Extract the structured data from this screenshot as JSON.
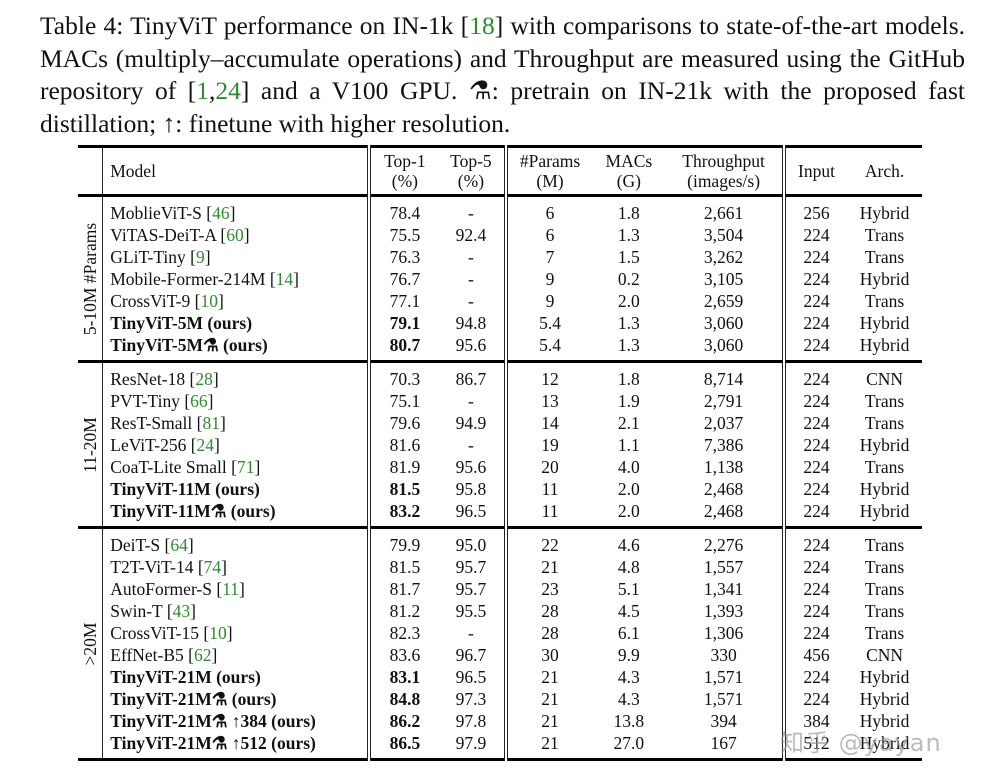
{
  "caption": {
    "prefix": "Table 4: TinyViT performance on IN-1k [",
    "cite1": "18",
    "part2": "] with comparisons to state-of-the-art models. MACs (multiply–accumulate operations) and Throughput are measured using the GitHub repository of [",
    "cite2": "1",
    "comma": ",",
    "cite3": "24",
    "part3": "] and a V100 GPU. ",
    "flask_symbol": "⚗",
    "part4": ": pretrain on IN-21k with the proposed fast distillation; ↑: finetune with higher resolution."
  },
  "table": {
    "headers": {
      "model": "Model",
      "top1": [
        "Top-1",
        "(%)"
      ],
      "top5": [
        "Top-5",
        "(%)"
      ],
      "params": [
        "#Params",
        "(M)"
      ],
      "macs": [
        "MACs",
        "(G)"
      ],
      "throughput": [
        "Throughput",
        "(images/s)"
      ],
      "input": "Input",
      "arch": "Arch."
    },
    "groups": [
      {
        "label": "5-10M #Params",
        "rows": [
          {
            "name": "MoblieViT-S ",
            "cite": "46",
            "top1": "78.4",
            "top5": "-",
            "params": "6",
            "macs": "1.8",
            "throughput": "2,661",
            "input": "256",
            "arch": "Hybrid"
          },
          {
            "name": "ViTAS-DeiT-A ",
            "cite": "60",
            "top1": "75.5",
            "top5": "92.4",
            "params": "6",
            "macs": "1.3",
            "throughput": "3,504",
            "input": "224",
            "arch": "Trans"
          },
          {
            "name": "GLiT-Tiny ",
            "cite": "9",
            "top1": "76.3",
            "top5": "-",
            "params": "7",
            "macs": "1.5",
            "throughput": "3,262",
            "input": "224",
            "arch": "Trans"
          },
          {
            "name": "Mobile-Former-214M ",
            "cite": "14",
            "top1": "76.7",
            "top5": "-",
            "params": "9",
            "macs": "0.2",
            "throughput": "3,105",
            "input": "224",
            "arch": "Hybrid"
          },
          {
            "name": "CrossViT-9 ",
            "cite": "10",
            "top1": "77.1",
            "top5": "-",
            "params": "9",
            "macs": "2.0",
            "throughput": "2,659",
            "input": "224",
            "arch": "Trans"
          },
          {
            "name": "TinyViT-5M (ours)",
            "bold": true,
            "top1": "79.1",
            "top5": "94.8",
            "params": "5.4",
            "macs": "1.3",
            "throughput": "3,060",
            "input": "224",
            "arch": "Hybrid"
          },
          {
            "name": "TinyViT-5M⚗ (ours)",
            "bold": true,
            "top1": "80.7",
            "top5": "95.6",
            "params": "5.4",
            "macs": "1.3",
            "throughput": "3,060",
            "input": "224",
            "arch": "Hybrid"
          }
        ]
      },
      {
        "label": "11-20M",
        "rows": [
          {
            "name": "ResNet-18 ",
            "cite": "28",
            "top1": "70.3",
            "top5": "86.7",
            "params": "12",
            "macs": "1.8",
            "throughput": "8,714",
            "input": "224",
            "arch": "CNN"
          },
          {
            "name": "PVT-Tiny ",
            "cite": "66",
            "top1": "75.1",
            "top5": "-",
            "params": "13",
            "macs": "1.9",
            "throughput": "2,791",
            "input": "224",
            "arch": "Trans"
          },
          {
            "name": "ResT-Small ",
            "cite": "81",
            "top1": "79.6",
            "top5": "94.9",
            "params": "14",
            "macs": "2.1",
            "throughput": "2,037",
            "input": "224",
            "arch": "Trans"
          },
          {
            "name": "LeViT-256 ",
            "cite": "24",
            "top1": "81.6",
            "top5": "-",
            "params": "19",
            "macs": "1.1",
            "throughput": "7,386",
            "input": "224",
            "arch": "Hybrid"
          },
          {
            "name": "CoaT-Lite Small ",
            "cite": "71",
            "top1": "81.9",
            "top5": "95.6",
            "params": "20",
            "macs": "4.0",
            "throughput": "1,138",
            "input": "224",
            "arch": "Trans"
          },
          {
            "name": "TinyViT-11M (ours)",
            "bold": true,
            "top1": "81.5",
            "top5": "95.8",
            "params": "11",
            "macs": "2.0",
            "throughput": "2,468",
            "input": "224",
            "arch": "Hybrid"
          },
          {
            "name": "TinyViT-11M⚗ (ours)",
            "bold": true,
            "top1": "83.2",
            "top5": "96.5",
            "params": "11",
            "macs": "2.0",
            "throughput": "2,468",
            "input": "224",
            "arch": "Hybrid"
          }
        ]
      },
      {
        "label": ">20M",
        "rows": [
          {
            "name": "DeiT-S ",
            "cite": "64",
            "top1": "79.9",
            "top5": "95.0",
            "params": "22",
            "macs": "4.6",
            "throughput": "2,276",
            "input": "224",
            "arch": "Trans"
          },
          {
            "name": "T2T-ViT-14 ",
            "cite": "74",
            "top1": "81.5",
            "top5": "95.7",
            "params": "21",
            "macs": "4.8",
            "throughput": "1,557",
            "input": "224",
            "arch": "Trans"
          },
          {
            "name": "AutoFormer-S ",
            "cite": "11",
            "top1": "81.7",
            "top5": "95.7",
            "params": "23",
            "macs": "5.1",
            "throughput": "1,341",
            "input": "224",
            "arch": "Trans"
          },
          {
            "name": "Swin-T ",
            "cite": "43",
            "top1": "81.2",
            "top5": "95.5",
            "params": "28",
            "macs": "4.5",
            "throughput": "1,393",
            "input": "224",
            "arch": "Trans"
          },
          {
            "name": "CrossViT-15 ",
            "cite": "10",
            "top1": "82.3",
            "top5": "-",
            "params": "28",
            "macs": "6.1",
            "throughput": "1,306",
            "input": "224",
            "arch": "Trans"
          },
          {
            "name": "EffNet-B5 ",
            "cite": "62",
            "top1": "83.6",
            "top5": "96.7",
            "params": "30",
            "macs": "9.9",
            "throughput": "330",
            "input": "456",
            "arch": "CNN"
          },
          {
            "name": "TinyViT-21M (ours)",
            "bold": true,
            "top1": "83.1",
            "top5": "96.5",
            "params": "21",
            "macs": "4.3",
            "throughput": "1,571",
            "input": "224",
            "arch": "Hybrid"
          },
          {
            "name": "TinyViT-21M⚗ (ours)",
            "bold": true,
            "top1": "84.8",
            "top5": "97.3",
            "params": "21",
            "macs": "4.3",
            "throughput": "1,571",
            "input": "224",
            "arch": "Hybrid"
          },
          {
            "name": "TinyViT-21M⚗ ↑384 (ours)",
            "bold": true,
            "top1": "86.2",
            "top5": "97.8",
            "params": "21",
            "macs": "13.8",
            "throughput": "394",
            "input": "384",
            "arch": "Hybrid"
          },
          {
            "name": "TinyViT-21M⚗ ↑512 (ours)",
            "bold": true,
            "top1": "86.5",
            "top5": "97.9",
            "params": "21",
            "macs": "27.0",
            "throughput": "167",
            "input": "512",
            "arch": "Hybrid"
          }
        ]
      }
    ]
  },
  "watermark": "知乎 @yayan",
  "colors": {
    "citation": "#2e8b2e",
    "text": "#111111",
    "rule": "#000000"
  }
}
